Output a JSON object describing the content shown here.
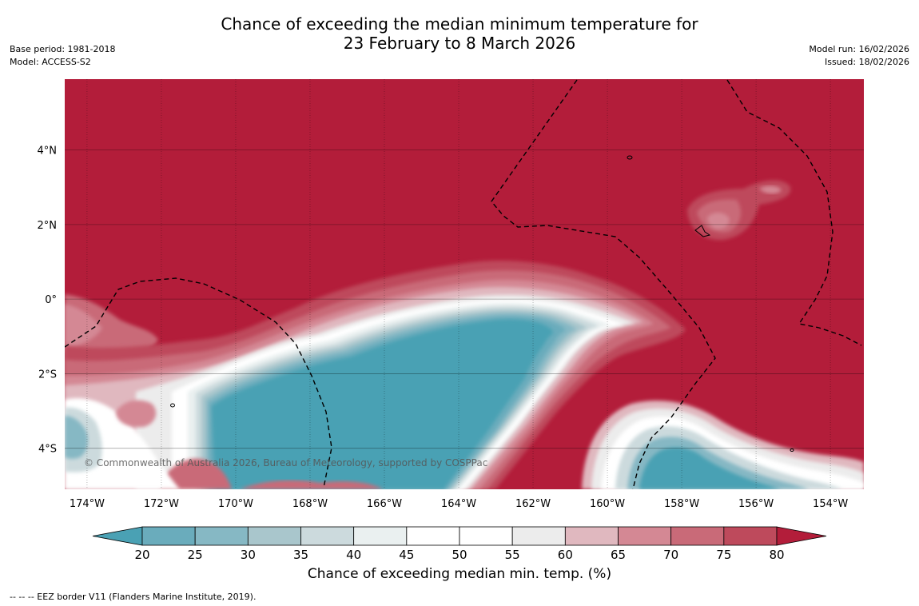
{
  "title": {
    "line1": "Chance of exceeding the median minimum temperature for",
    "line2": "23 February to 8 March 2026"
  },
  "meta_left": {
    "base_period": "Base period: 1981-2018",
    "model": "Model: ACCESS-S2"
  },
  "meta_right": {
    "model_run": "Model run: 16/02/2026",
    "issued": "Issued: 18/02/2026"
  },
  "map": {
    "copyright": "© Commonwealth of Australia 2026, Bureau of Meteorology, supported by COSPPac",
    "lon_labels": [
      "174°W",
      "172°W",
      "170°W",
      "168°W",
      "166°W",
      "164°W",
      "162°W",
      "160°W",
      "158°W",
      "156°W",
      "154°W"
    ],
    "lat_labels": [
      "4°N",
      "2°N",
      "0°",
      "2°S",
      "4°S"
    ],
    "lon_range": [
      -174.6,
      -153.1
    ],
    "lat_range": [
      -5.1,
      5.9
    ],
    "lon_ticks": [
      -174,
      -172,
      -170,
      -168,
      -166,
      -164,
      -162,
      -160,
      -158,
      -156,
      -154
    ],
    "lat_ticks": [
      4,
      2,
      0,
      -2,
      -4
    ]
  },
  "colorbar": {
    "title": "Chance of exceeding median min. temp. (%)",
    "ticks": [
      "20",
      "25",
      "30",
      "35",
      "40",
      "45",
      "50",
      "55",
      "60",
      "65",
      "70",
      "75",
      "80"
    ],
    "colors": {
      "below": "#4aa1b4",
      "bins": [
        "#6aacbc",
        "#86b8c4",
        "#a9c6cc",
        "#ccdadd",
        "#eaf0f0",
        "#ffffff",
        "#ffffff",
        "#ececec",
        "#e0b8bf",
        "#d48894",
        "#c96a78",
        "#be4a5c"
      ],
      "above": "#b31d3a"
    }
  },
  "footer": "--  --  -- EEZ border V11 (Flanders Marine Institute, 2019)."
}
